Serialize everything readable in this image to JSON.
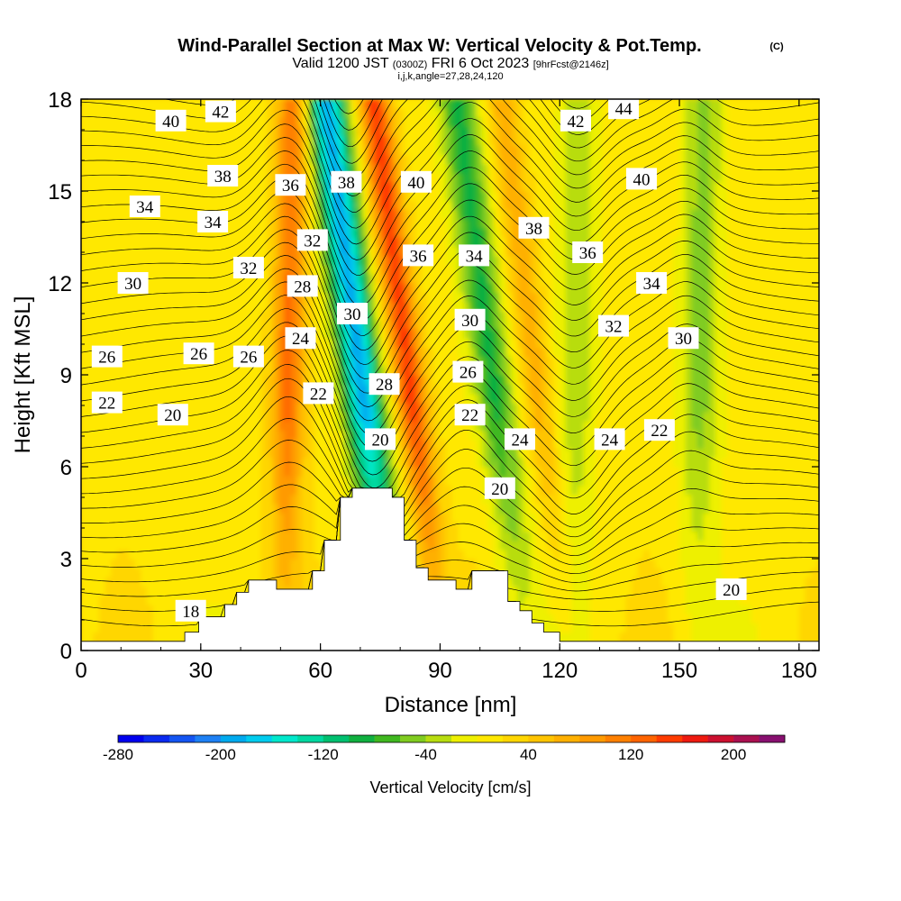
{
  "title": "Wind-Parallel Section at Max W: Vertical Velocity & Pot.Temp.",
  "copyright": "(C)",
  "subtitle_valid": "Valid 1200 JST",
  "subtitle_utc": "(0300Z)",
  "subtitle_date": "FRI 6 Oct 2023",
  "subtitle_fcst": "[9hrFcst@2146z]",
  "subtitle_params": "i,j,k,angle=27,28,24,120",
  "chart_data": {
    "type": "heatmap",
    "xlabel": "Distance [nm]",
    "ylabel": "Height [Kft MSL]",
    "xlim": [
      0,
      185
    ],
    "ylim": [
      0,
      18
    ],
    "xticks": [
      0,
      30,
      60,
      90,
      120,
      150,
      180
    ],
    "yticks": [
      0,
      3,
      6,
      9,
      12,
      15,
      18
    ],
    "colorbar": {
      "label": "Vertical Velocity [cm/s]",
      "min": -280,
      "max": 240,
      "step": 20,
      "ticks": [
        -280,
        -200,
        -120,
        -40,
        40,
        120,
        200
      ],
      "colors": [
        "#0000ee",
        "#0a2af0",
        "#1455f2",
        "#1e80f4",
        "#00aaee",
        "#00ccee",
        "#00e8cc",
        "#00d8a0",
        "#00c070",
        "#10b040",
        "#40b820",
        "#80cc20",
        "#b8dd10",
        "#eef000",
        "#ffe800",
        "#ffd600",
        "#ffc400",
        "#ffb000",
        "#ff9a00",
        "#ff8000",
        "#ff6400",
        "#ff3c00",
        "#ee1a10",
        "#cc1030",
        "#aa1050",
        "#881070"
      ]
    },
    "velocity_features": [
      {
        "name": "updraft",
        "x": 52,
        "peak_cm_s": 110
      },
      {
        "name": "downdraft",
        "x": 70,
        "peak_cm_s": -200
      },
      {
        "name": "updraft",
        "x": 82,
        "peak_cm_s": 140
      },
      {
        "name": "downdraft",
        "x": 103,
        "peak_cm_s": -100
      },
      {
        "name": "updraft",
        "x": 114,
        "peak_cm_s": 60
      },
      {
        "name": "downdraft",
        "x": 124,
        "peak_cm_s": -45
      },
      {
        "name": "downdraft",
        "x": 155,
        "peak_cm_s": -60
      }
    ],
    "terrain": [
      [
        0,
        0.3
      ],
      [
        26,
        0.3
      ],
      [
        26,
        0.6
      ],
      [
        29.5,
        0.6
      ],
      [
        29.5,
        1.1
      ],
      [
        36,
        1.1
      ],
      [
        36,
        1.5
      ],
      [
        39,
        1.5
      ],
      [
        39,
        1.9
      ],
      [
        42,
        1.9
      ],
      [
        42,
        2.3
      ],
      [
        49,
        2.3
      ],
      [
        49,
        2.0
      ],
      [
        58,
        2.0
      ],
      [
        58,
        2.6
      ],
      [
        61,
        2.6
      ],
      [
        61,
        3.6
      ],
      [
        65,
        3.6
      ],
      [
        65,
        5.0
      ],
      [
        68,
        5.0
      ],
      [
        68,
        5.3
      ],
      [
        78,
        5.3
      ],
      [
        78,
        5.0
      ],
      [
        81,
        5.0
      ],
      [
        81,
        3.6
      ],
      [
        84,
        3.6
      ],
      [
        84,
        2.7
      ],
      [
        87,
        2.7
      ],
      [
        87,
        2.3
      ],
      [
        94,
        2.3
      ],
      [
        94,
        2.0
      ],
      [
        98,
        2.0
      ],
      [
        98,
        2.6
      ],
      [
        107,
        2.6
      ],
      [
        107,
        1.6
      ],
      [
        110,
        1.6
      ],
      [
        110,
        1.3
      ],
      [
        113,
        1.3
      ],
      [
        113,
        0.9
      ],
      [
        116,
        0.9
      ],
      [
        116,
        0.6
      ],
      [
        120,
        0.6
      ],
      [
        120,
        0.3
      ],
      [
        185,
        0.3
      ]
    ],
    "isentropes": [
      {
        "theta": 18,
        "label_x": 27,
        "label_y": 1.4
      },
      {
        "theta": 20,
        "label_x": 23,
        "label_y": 7.8
      },
      {
        "theta": 22,
        "label_x": 7,
        "label_y": 8.1
      },
      {
        "theta": 24,
        "label_x": 55,
        "label_y": 10.2
      },
      {
        "theta": 26,
        "label_x": 6,
        "label_y": 9.6
      },
      {
        "theta": 28,
        "label_x": 56,
        "label_y": 11.9
      },
      {
        "theta": 30,
        "label_x": 13,
        "label_y": 12.0
      },
      {
        "theta": 32,
        "label_x": 42,
        "label_y": 12.5
      },
      {
        "theta": 34,
        "label_x": 16,
        "label_y": 14.5
      },
      {
        "theta": 36,
        "label_x": 53,
        "label_y": 15.2
      },
      {
        "theta": 38,
        "label_x": 36,
        "label_y": 15.5
      },
      {
        "theta": 40,
        "label_x": 22,
        "label_y": 17.3
      },
      {
        "theta": 42,
        "label_x": 35,
        "label_y": 17.5
      },
      {
        "theta": 44,
        "label_x": 139,
        "label_y": 17.7
      }
    ],
    "contour_labels": [
      {
        "text": "18",
        "x": 27.5,
        "y": 1.3
      },
      {
        "text": "22",
        "x": 6.5,
        "y": 8.1
      },
      {
        "text": "20",
        "x": 23,
        "y": 7.7
      },
      {
        "text": "26",
        "x": 6.5,
        "y": 9.6
      },
      {
        "text": "26",
        "x": 29.5,
        "y": 9.7
      },
      {
        "text": "26",
        "x": 42,
        "y": 9.6
      },
      {
        "text": "30",
        "x": 13,
        "y": 12.0
      },
      {
        "text": "34",
        "x": 16,
        "y": 14.5
      },
      {
        "text": "34",
        "x": 33,
        "y": 14.0
      },
      {
        "text": "32",
        "x": 42,
        "y": 12.5
      },
      {
        "text": "38",
        "x": 35.5,
        "y": 15.5
      },
      {
        "text": "40",
        "x": 22.5,
        "y": 17.3
      },
      {
        "text": "42",
        "x": 35,
        "y": 17.6
      },
      {
        "text": "36",
        "x": 52.5,
        "y": 15.2
      },
      {
        "text": "32",
        "x": 58,
        "y": 13.4
      },
      {
        "text": "28",
        "x": 55.5,
        "y": 11.9
      },
      {
        "text": "24",
        "x": 55,
        "y": 10.2
      },
      {
        "text": "22",
        "x": 59.5,
        "y": 8.4
      },
      {
        "text": "38",
        "x": 66.5,
        "y": 15.3
      },
      {
        "text": "30",
        "x": 68,
        "y": 11.0
      },
      {
        "text": "28",
        "x": 76,
        "y": 8.7
      },
      {
        "text": "20",
        "x": 75,
        "y": 6.9
      },
      {
        "text": "40",
        "x": 84,
        "y": 15.3
      },
      {
        "text": "36",
        "x": 84.5,
        "y": 12.9
      },
      {
        "text": "34",
        "x": 98.5,
        "y": 12.9
      },
      {
        "text": "30",
        "x": 97.5,
        "y": 10.8
      },
      {
        "text": "26",
        "x": 97,
        "y": 9.1
      },
      {
        "text": "22",
        "x": 97.5,
        "y": 7.7
      },
      {
        "text": "20",
        "x": 105,
        "y": 5.3
      },
      {
        "text": "24",
        "x": 110,
        "y": 6.9
      },
      {
        "text": "38",
        "x": 113.5,
        "y": 13.8
      },
      {
        "text": "42",
        "x": 124,
        "y": 17.3
      },
      {
        "text": "44",
        "x": 136,
        "y": 17.7
      },
      {
        "text": "40",
        "x": 140.5,
        "y": 15.4
      },
      {
        "text": "36",
        "x": 127,
        "y": 13.0
      },
      {
        "text": "34",
        "x": 143,
        "y": 12.0
      },
      {
        "text": "32",
        "x": 133.5,
        "y": 10.6
      },
      {
        "text": "30",
        "x": 151,
        "y": 10.2
      },
      {
        "text": "24",
        "x": 132.5,
        "y": 6.9
      },
      {
        "text": "22",
        "x": 145,
        "y": 7.2
      },
      {
        "text": "20",
        "x": 163,
        "y": 2.0
      }
    ]
  }
}
